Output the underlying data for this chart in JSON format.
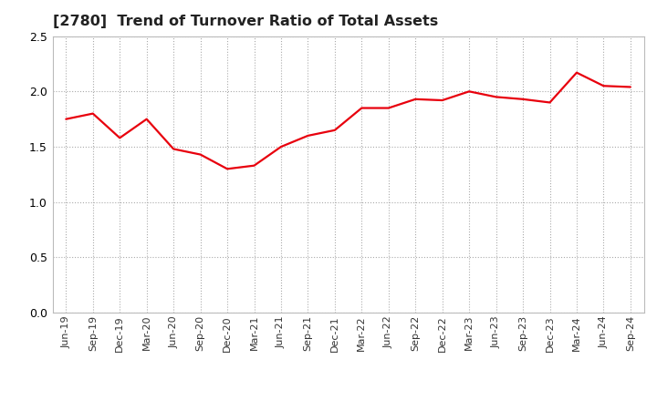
{
  "title": "[2780]  Trend of Turnover Ratio of Total Assets",
  "title_fontsize": 11.5,
  "title_fontweight": "bold",
  "line_color": "#e8000d",
  "line_width": 1.6,
  "background_color": "#ffffff",
  "plot_bg_color": "#ffffff",
  "ylim": [
    0.0,
    2.5
  ],
  "yticks": [
    0.0,
    0.5,
    1.0,
    1.5,
    2.0,
    2.5
  ],
  "grid_color": "#aaaaaa",
  "grid_style": "dotted",
  "labels": [
    "Jun-19",
    "Sep-19",
    "Dec-19",
    "Mar-20",
    "Jun-20",
    "Sep-20",
    "Dec-20",
    "Mar-21",
    "Jun-21",
    "Sep-21",
    "Dec-21",
    "Mar-22",
    "Jun-22",
    "Sep-22",
    "Dec-22",
    "Mar-23",
    "Jun-23",
    "Sep-23",
    "Dec-23",
    "Mar-24",
    "Jun-24",
    "Sep-24"
  ],
  "values": [
    1.75,
    1.8,
    1.58,
    1.75,
    1.48,
    1.43,
    1.3,
    1.33,
    1.5,
    1.6,
    1.65,
    1.85,
    1.85,
    1.93,
    1.92,
    2.0,
    1.95,
    1.93,
    1.9,
    2.17,
    2.05,
    2.04
  ],
  "tick_fontsize": 9.0,
  "xtick_fontsize": 8.0
}
